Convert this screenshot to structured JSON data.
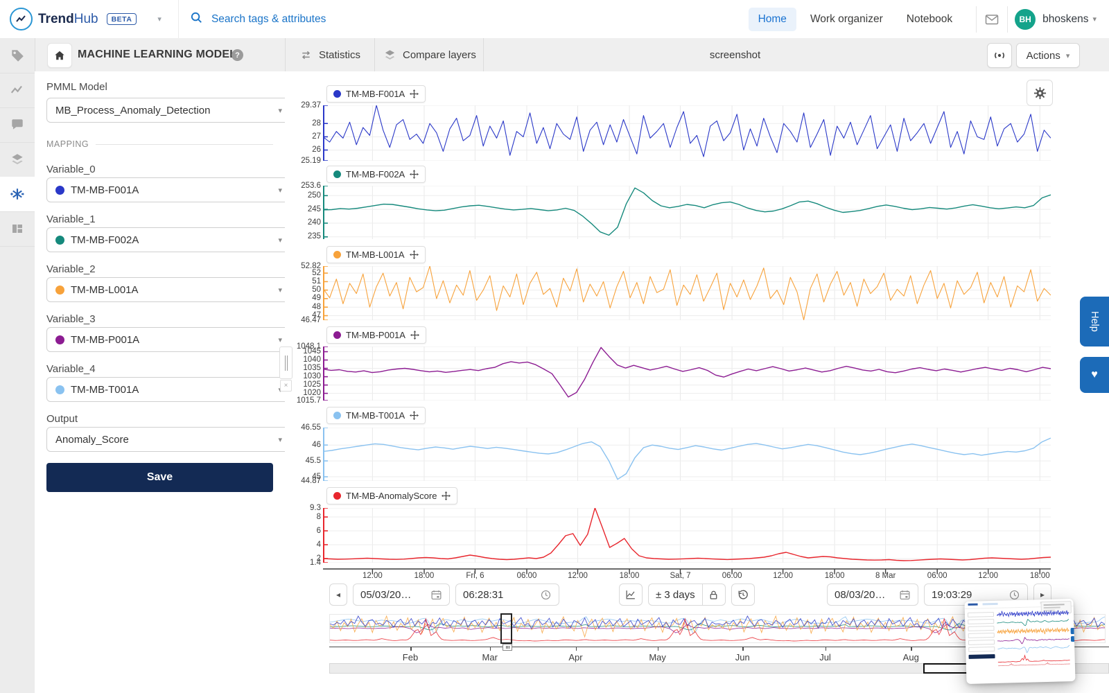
{
  "brand": {
    "name_bold": "Trend",
    "name_light": "Hub",
    "beta": "BETA"
  },
  "navbar": {
    "search_placeholder": "Search tags & attributes",
    "links": [
      "Home",
      "Work organizer",
      "Notebook"
    ],
    "active_link": "Home",
    "user": {
      "initials": "BH",
      "name": "bhoskens"
    }
  },
  "toolbar": {
    "title": "MACHINE LEARNING MODEL",
    "statistics": "Statistics",
    "compare_layers": "Compare layers",
    "view_name": "screenshot",
    "actions": "Actions"
  },
  "rail_icons": [
    "tag",
    "trend-line",
    "comment",
    "layers",
    "ml-model",
    "dashboard"
  ],
  "panel": {
    "pmml": {
      "label": "PMML Model",
      "value": "MB_Process_Anomaly_Detection"
    },
    "section": "MAPPING",
    "fields": [
      {
        "label": "Variable_0",
        "value": "TM-MB-F001A",
        "color": "#2a38c8"
      },
      {
        "label": "Variable_1",
        "value": "TM-MB-F002A",
        "color": "#15897c"
      },
      {
        "label": "Variable_2",
        "value": "TM-MB-L001A",
        "color": "#f7a23b"
      },
      {
        "label": "Variable_3",
        "value": "TM-MB-P001A",
        "color": "#8c1c92"
      },
      {
        "label": "Variable_4",
        "value": "TM-MB-T001A",
        "color": "#8ac2f0"
      },
      {
        "label": "Output",
        "value": "Anomaly_Score",
        "color": null
      }
    ],
    "save": "Save"
  },
  "x_axis": {
    "labels": [
      "12:00",
      "18:00",
      "Fri, 6",
      "06:00",
      "12:00",
      "18:00",
      "Sat, 7",
      "06:00",
      "12:00",
      "18:00",
      "8 Mar",
      "06:00",
      "12:00",
      "18:00"
    ],
    "positions_pct": [
      6.8,
      13.9,
      20.9,
      28,
      35,
      42.1,
      49.1,
      56.2,
      63.2,
      70.3,
      77.3,
      84.4,
      91.4,
      98.5
    ]
  },
  "chart_data": [
    {
      "type": "line",
      "name": "TM-MB-F001A",
      "color": "#2a38c8",
      "ylim": [
        25.19,
        29.37
      ],
      "yticks": [
        29.37,
        28,
        27,
        26,
        25.19
      ],
      "values": [
        27,
        26.6,
        27.4,
        26.9,
        28.1,
        26.4,
        27.7,
        27.1,
        29.37,
        27.5,
        26.2,
        27.9,
        28.3,
        26.8,
        27.2,
        26.5,
        28,
        27.3,
        25.9,
        27.6,
        28.4,
        26.7,
        27.1,
        28.6,
        26.3,
        27.8,
        26.9,
        28.2,
        25.6,
        27.4,
        27,
        28.8,
        26.5,
        27.7,
        26.1,
        28,
        27.2,
        26.8,
        28.5,
        25.9,
        27.5,
        28.1,
        26.4,
        27.9,
        26.6,
        28.3,
        27,
        25.7,
        28.6,
        26.9,
        27.4,
        28,
        26.2,
        27.7,
        28.9,
        26.5,
        27.1,
        25.5,
        27.8,
        28.2,
        26.7,
        27.3,
        28.7,
        26,
        27.6,
        26.3,
        28.4,
        27,
        25.8,
        28,
        27.4,
        26.6,
        28.8,
        26.2,
        27.2,
        28.3,
        25.6,
        27.8,
        26.9,
        28.1,
        26.4,
        27.5,
        28.6,
        26.1,
        27,
        27.9,
        25.9,
        28.4,
        26.7,
        27.3,
        28,
        26.5,
        27.7,
        28.9,
        26.2,
        27.4,
        25.7,
        28.2,
        27,
        26.8,
        28.5,
        26.3,
        27.6,
        28,
        26.6,
        27.2,
        28.7,
        25.9,
        27.5,
        26.9
      ]
    },
    {
      "type": "line",
      "name": "TM-MB-F002A",
      "color": "#15897c",
      "ylim": [
        234.2,
        253.6
      ],
      "yticks": [
        253.6,
        250,
        245,
        240,
        235
      ],
      "values": [
        244.8,
        244.9,
        245.3,
        245.1,
        245.4,
        245.9,
        246.4,
        246.9,
        246.8,
        246.3,
        245.8,
        245.2,
        244.8,
        244.5,
        244.7,
        245.3,
        245.9,
        246.3,
        246.5,
        246.1,
        245.6,
        245.1,
        244.8,
        245,
        245.3,
        244.9,
        244.5,
        244.8,
        245.4,
        244.6,
        242.5,
        239.8,
        236.8,
        235.6,
        238.5,
        247,
        252.8,
        251,
        248.2,
        246.3,
        245.6,
        246.1,
        246.8,
        246.4,
        245.6,
        246.7,
        247.4,
        247.7,
        246.8,
        245.5,
        244.6,
        244.1,
        244.4,
        245.2,
        246.4,
        247.7,
        248,
        247.1,
        245.8,
        244.7,
        243.9,
        244.2,
        244.6,
        245.3,
        246.1,
        246.6,
        246.1,
        245.4,
        244.9,
        245.2,
        245.7,
        245.4,
        245.1,
        245.5,
        246.2,
        246.7,
        246.2,
        245.6,
        245.2,
        245.5,
        245.9,
        245.6,
        246.4,
        249.2,
        250.3
      ]
    },
    {
      "type": "line",
      "name": "TM-MB-L001A",
      "color": "#f7a23b",
      "ylim": [
        46.47,
        52.82
      ],
      "yticks": [
        52.82,
        52,
        51,
        50,
        49,
        48,
        47,
        46.47
      ],
      "values": [
        50.2,
        49.1,
        51.3,
        48.4,
        50.8,
        49.6,
        51.9,
        48,
        50.4,
        52,
        49.3,
        50.9,
        47.8,
        51.5,
        49.8,
        50.3,
        52.82,
        49,
        51.1,
        48.5,
        50.6,
        49.4,
        52.3,
        48.8,
        50,
        51.7,
        47.6,
        50.5,
        49.2,
        51.9,
        48.3,
        50.8,
        52.1,
        49.5,
        50.2,
        48,
        51.4,
        49.9,
        52.5,
        48.6,
        50.7,
        49.3,
        51,
        47.9,
        50.4,
        52.2,
        49.1,
        50.9,
        48.4,
        51.6,
        49.7,
        50.1,
        52.4,
        48.2,
        50.6,
        49.5,
        51.8,
        48.7,
        50.3,
        52,
        47.7,
        50.8,
        49.2,
        51.2,
        48.9,
        50.5,
        52.6,
        49,
        50,
        48.3,
        51.5,
        49.8,
        46.5,
        50.2,
        51.9,
        48.6,
        50.7,
        52.2,
        49.4,
        50.9,
        48.1,
        51.3,
        49.6,
        50.4,
        52,
        48.8,
        50.1,
        49.3,
        51.7,
        48.4,
        50.6,
        52.3,
        49,
        50.8,
        47.9,
        51.1,
        49.5,
        50.3,
        52.1,
        48.5,
        50.9,
        49.2,
        51.6,
        48,
        50.5,
        49.8,
        52.4,
        48.7,
        50.2,
        49.4
      ]
    },
    {
      "type": "line",
      "name": "TM-MB-P001A",
      "color": "#8c1c92",
      "ylim": [
        1015.7,
        1048.1
      ],
      "yticks": [
        1048.1,
        1045,
        1040,
        1035,
        1030,
        1025,
        1020,
        1015.7
      ],
      "values": [
        1034.5,
        1033.8,
        1034.2,
        1033.2,
        1032.8,
        1033.5,
        1032.5,
        1033,
        1034,
        1034.6,
        1035,
        1034.4,
        1033.6,
        1032.9,
        1033.4,
        1032.6,
        1033.1,
        1033.8,
        1034.3,
        1033.7,
        1034.8,
        1035.6,
        1037.8,
        1039,
        1038.2,
        1038.8,
        1037.2,
        1034.6,
        1031.8,
        1025,
        1017.8,
        1020.5,
        1028.5,
        1038.5,
        1047.5,
        1042,
        1037,
        1035.2,
        1036.8,
        1035.4,
        1034,
        1035,
        1036.2,
        1034.6,
        1033.2,
        1034.2,
        1035.4,
        1033.8,
        1031,
        1029.8,
        1031.6,
        1033.2,
        1034.6,
        1033.6,
        1034.8,
        1036,
        1034.8,
        1033.4,
        1034.2,
        1035.2,
        1034,
        1032.8,
        1033.6,
        1035,
        1036.2,
        1035.2,
        1034,
        1033.4,
        1034.4,
        1033,
        1032.4,
        1033.4,
        1034.6,
        1035.4,
        1034.4,
        1033.6,
        1034.6,
        1033.8,
        1032.8,
        1033.8,
        1034.8,
        1035.6,
        1034.6,
        1033.8,
        1035,
        1034.2,
        1033,
        1034.2,
        1035.6,
        1034.8
      ]
    },
    {
      "type": "line",
      "name": "TM-MB-T001A",
      "color": "#8ac2f0",
      "ylim": [
        44.87,
        46.55
      ],
      "yticks": [
        46.55,
        46,
        45.5,
        45,
        44.87
      ],
      "values": [
        45.8,
        45.83,
        45.88,
        45.92,
        45.96,
        46,
        46.04,
        46.02,
        45.97,
        45.92,
        45.88,
        45.85,
        45.9,
        45.94,
        45.91,
        45.87,
        45.92,
        45.96,
        45.93,
        45.89,
        45.93,
        45.9,
        45.86,
        45.82,
        45.78,
        45.74,
        45.72,
        45.76,
        45.85,
        45.95,
        46.05,
        46.1,
        45.95,
        45.5,
        44.92,
        45.1,
        45.6,
        45.92,
        46,
        45.96,
        45.9,
        45.86,
        45.92,
        45.98,
        45.94,
        45.88,
        45.84,
        45.9,
        45.96,
        46.02,
        46.05,
        46,
        45.94,
        45.88,
        45.92,
        45.97,
        46.02,
        45.98,
        45.92,
        45.85,
        45.78,
        45.73,
        45.7,
        45.74,
        45.8,
        45.87,
        45.93,
        45.99,
        46.03,
        45.98,
        45.92,
        45.86,
        45.8,
        45.74,
        45.7,
        45.73,
        45.68,
        45.72,
        45.76,
        45.8,
        45.78,
        45.82,
        45.9,
        46.1,
        46.22
      ]
    },
    {
      "type": "line",
      "name": "TM-MB-AnomalyScore",
      "color": "#e8262d",
      "ylim": [
        1.4,
        9.3
      ],
      "yticks": [
        9.3,
        8,
        6,
        4,
        2,
        1.4
      ],
      "values": [
        2,
        1.95,
        1.9,
        1.92,
        1.96,
        2,
        2.05,
        2,
        1.95,
        1.9,
        1.88,
        1.92,
        2,
        2.1,
        2.15,
        2.1,
        2,
        1.95,
        2.1,
        2.3,
        2.5,
        2.35,
        2.15,
        2,
        1.9,
        1.85,
        1.9,
        2,
        2.1,
        2,
        2.2,
        2.8,
        4,
        5.3,
        5.6,
        3.9,
        5.5,
        9.3,
        6.5,
        3.6,
        4.2,
        4.9,
        3.4,
        2.4,
        2.1,
        2,
        1.95,
        1.9,
        1.92,
        1.96,
        2,
        2.05,
        2,
        1.94,
        1.9,
        1.86,
        1.9,
        1.95,
        2,
        2.1,
        2.2,
        2.4,
        2.7,
        2.9,
        2.6,
        2.3,
        2.1,
        2.2,
        2.3,
        2.25,
        2.1,
        2,
        1.9,
        1.85,
        1.8,
        1.78,
        1.8,
        1.85,
        1.75,
        1.7,
        1.72,
        1.78,
        1.85,
        1.9,
        1.95,
        1.9,
        1.85,
        1.8,
        1.85,
        1.95,
        2.05,
        2.1,
        2.05,
        2,
        1.95,
        1.9,
        1.95,
        2.05,
        2.15,
        2.2
      ]
    }
  ],
  "footer": {
    "start_date": "05/03/20…",
    "start_time": "06:28:31",
    "range": "± 3 days",
    "end_date": "08/03/20…",
    "end_time": "19:03:29",
    "prev_icon": "◂",
    "next_icon": "▸"
  },
  "context_bar": {
    "months": [
      "Feb",
      "Mar",
      "Apr",
      "May",
      "Jun",
      "Jul",
      "Aug"
    ],
    "positions_pct": [
      10.4,
      20.6,
      31.6,
      42.1,
      53,
      63.6,
      74.6
    ]
  },
  "help_tab": "Help",
  "heart_icon": "♥"
}
